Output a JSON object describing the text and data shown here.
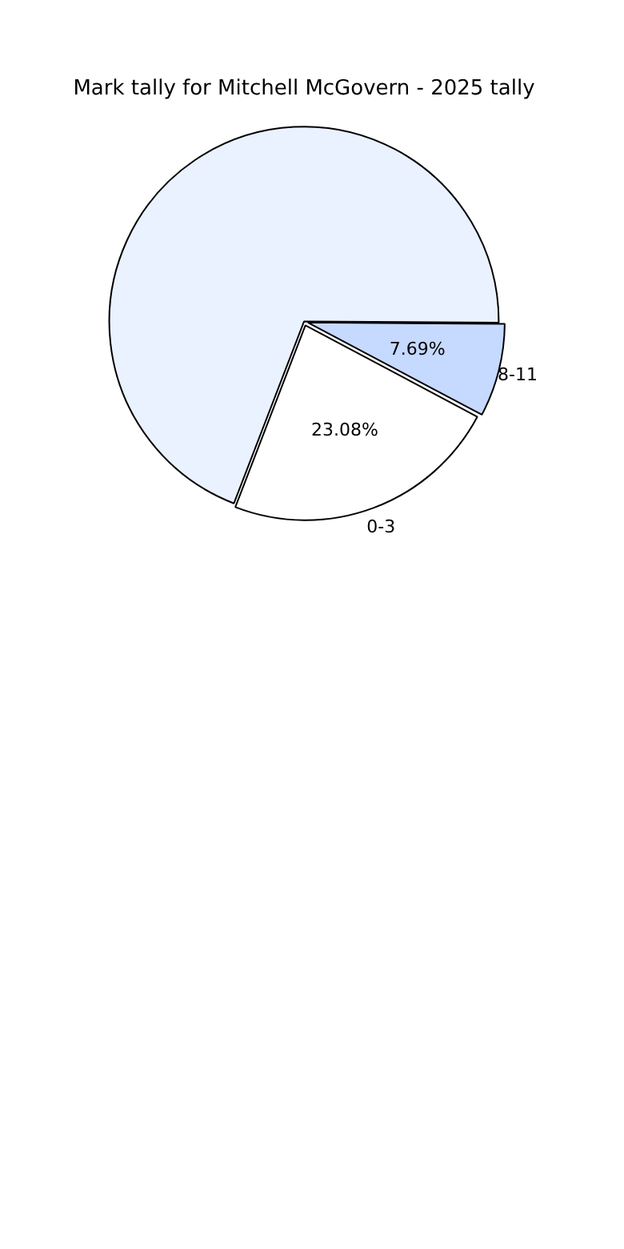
{
  "chart_data": {
    "type": "pie",
    "title": "Mark tally for Mitchell McGovern - 2025 tally",
    "categories": [
      "0-3",
      null,
      "8-11"
    ],
    "values": [
      23.08,
      69.23,
      7.69
    ],
    "colors": [
      "#ffffff",
      "#eaf1ff",
      "#c6d9ff"
    ],
    "value_labels": [
      "23.08%",
      null,
      "7.69%"
    ],
    "legend": false
  }
}
